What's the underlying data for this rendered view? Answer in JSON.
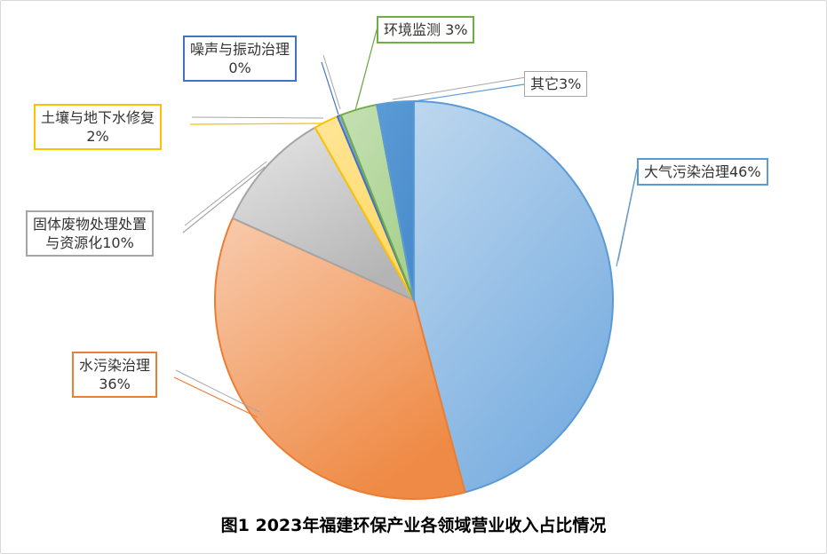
{
  "chart_data": {
    "type": "pie",
    "title": "图1  2023年福建环保产业各领域营业收入占比情况",
    "slices": [
      {
        "label": "大气污染治理",
        "value": 46,
        "value_label": "46%",
        "label_text": "大气污染治理46%",
        "color": "#5b9bd5",
        "fill_light": "#bdd7ee",
        "fill_dark": "#7aaee0"
      },
      {
        "label": "水污染治理",
        "value": 36,
        "value_label": "36%",
        "label_text": "水污染治理",
        "color": "#ed7d31",
        "fill_light": "#f8cbad",
        "fill_dark": "#ee8a45"
      },
      {
        "label": "固体废物处理处置与资源化",
        "value": 10,
        "value_label": "10%",
        "label_text": "固体废物处理处置",
        "label_text2": "与资源化10%",
        "color": "#a5a5a5",
        "fill_light": "#e7e7e7",
        "fill_dark": "#b4b4b4"
      },
      {
        "label": "土壤与地下水修复",
        "value": 2,
        "value_label": "2%",
        "label_text": "土壤与地下水修复",
        "color": "#ffc000",
        "fill_light": "#ffe699",
        "fill_dark": "#ffd966"
      },
      {
        "label": "噪声与振动治理",
        "value": 0.3,
        "value_label": "0%",
        "label_text": "噪声与振动治理",
        "color": "#4472c4",
        "fill_light": "#8faadc",
        "fill_dark": "#4472c4"
      },
      {
        "label": "环境监测",
        "value": 3,
        "value_label": "3%",
        "label_text": "环境监测 3%",
        "color": "#70ad47",
        "fill_light": "#c5e0b4",
        "fill_dark": "#a9d18e"
      },
      {
        "label": "其它",
        "value": 3,
        "value_label": "3%",
        "label_text": "其它3%",
        "color": "#5b9bd5",
        "fill_light": "#5b9bd5",
        "fill_dark": "#4a8ccc"
      }
    ]
  }
}
